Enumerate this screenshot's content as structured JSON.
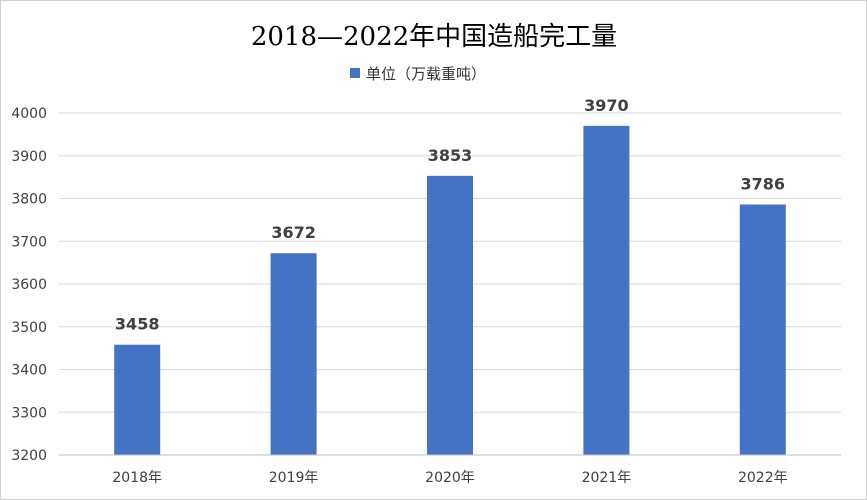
{
  "chart_data": {
    "type": "bar",
    "title": "2018—2022年中国造船完工量",
    "categories": [
      "2018年",
      "2019年",
      "2020年",
      "2021年",
      "2022年"
    ],
    "series": [
      {
        "name": "单位（万载重吨）",
        "values": [
          3458,
          3672,
          3853,
          3970,
          3786
        ]
      }
    ],
    "ylim": [
      3200,
      4000
    ],
    "yticks": [
      3200,
      3300,
      3400,
      3500,
      3600,
      3700,
      3800,
      3900,
      4000
    ],
    "grid": true,
    "legend": "top-center",
    "data_labels": true,
    "colors": {
      "bar": "#4472c4"
    }
  }
}
